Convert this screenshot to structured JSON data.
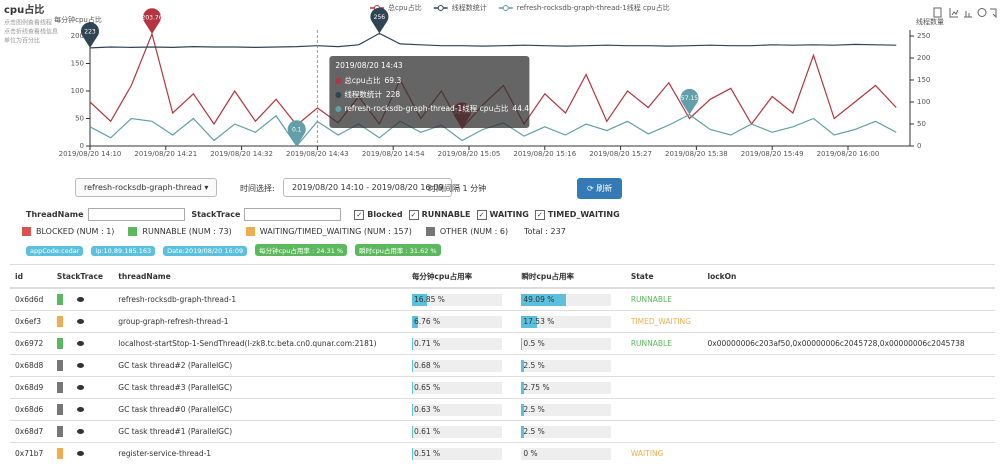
{
  "header": {
    "title": "cpu占比",
    "notes": [
      "点击图例查看线程",
      "点击折线查看栈信息",
      "单位为百分比"
    ]
  },
  "chart_data": {
    "type": "line",
    "legend": "top",
    "y_label": "每分钟cpu占比",
    "y2_label": "线程数量",
    "x": [
      "2019/08/20 14:10",
      "2019/08/20 14:13",
      "2019/08/20 14:16",
      "2019/08/20 14:19",
      "2019/08/20 14:22",
      "2019/08/20 14:25",
      "2019/08/20 14:28",
      "2019/08/20 14:31",
      "2019/08/20 14:34",
      "2019/08/20 14:37",
      "2019/08/20 14:40",
      "2019/08/20 14:43",
      "2019/08/20 14:46",
      "2019/08/20 14:49",
      "2019/08/20 14:52",
      "2019/08/20 14:55",
      "2019/08/20 14:58",
      "2019/08/20 15:01",
      "2019/08/20 15:04",
      "2019/08/20 15:07",
      "2019/08/20 15:10",
      "2019/08/20 15:13",
      "2019/08/20 15:16",
      "2019/08/20 15:19",
      "2019/08/20 15:22",
      "2019/08/20 15:25",
      "2019/08/20 15:28",
      "2019/08/20 15:31",
      "2019/08/20 15:34",
      "2019/08/20 15:37",
      "2019/08/20 15:40",
      "2019/08/20 15:43",
      "2019/08/20 15:46",
      "2019/08/20 15:49",
      "2019/08/20 15:52",
      "2019/08/20 15:55",
      "2019/08/20 15:58",
      "2019/08/20 16:01",
      "2019/08/20 16:04",
      "2019/08/20 16:07"
    ],
    "xlim": [
      "2019/08/20 14:10",
      "2019/08/20 16:09"
    ],
    "xticks": [
      "2019/08/20 14:10",
      "2019/08/20 14:21",
      "2019/08/20 14:32",
      "2019/08/20 14:43",
      "2019/08/20 14:54",
      "2019/08/20 15:05",
      "2019/08/20 15:16",
      "2019/08/20 15:27",
      "2019/08/20 15:38",
      "2019/08/20 15:49",
      "2019/08/20 16:00"
    ],
    "ylim": [
      0,
      200
    ],
    "yticks": [
      0,
      50,
      100,
      150,
      200
    ],
    "y2lim": [
      0,
      250
    ],
    "y2ticks": [
      0,
      50,
      100,
      150,
      200,
      250
    ],
    "grid": false,
    "mark_points": [
      "max",
      "min"
    ],
    "series": [
      {
        "name": "总cpu占比",
        "color": "#b5343f",
        "values": [
          80,
          45,
          110,
          203.76,
          60,
          95,
          40,
          100,
          45,
          85,
          38,
          69.3,
          42,
          90,
          40,
          120,
          50,
          100,
          32.36,
          75,
          110,
          40,
          95,
          60,
          130,
          45,
          100,
          70,
          115,
          50,
          85,
          105,
          40,
          90,
          60,
          165,
          50,
          80,
          110,
          70
        ]
      },
      {
        "name": "线程数统计",
        "color": "#2f4554",
        "axis": "y2",
        "values": [
          223,
          225,
          224,
          225,
          224,
          226,
          225,
          225,
          224,
          225,
          226,
          228,
          226,
          230,
          256,
          232,
          230,
          228,
          228,
          227,
          228,
          229,
          228,
          227,
          228,
          229,
          228,
          228,
          227,
          228,
          229,
          228,
          228,
          230,
          229,
          230,
          229,
          231,
          230,
          229
        ]
      },
      {
        "name": "refresh-rocksdb-graph-thread-1线程 cpu占比",
        "color": "#61a0a8",
        "values": [
          35,
          15,
          50,
          45,
          20,
          50,
          10,
          40,
          25,
          55,
          0.1,
          44.49,
          20,
          40,
          15,
          45,
          25,
          38,
          10,
          30,
          42,
          18,
          35,
          20,
          40,
          28,
          45,
          22,
          38,
          57.15,
          30,
          20,
          40,
          25,
          35,
          50,
          20,
          30,
          45,
          25
        ]
      }
    ]
  },
  "controls": {
    "thread_select": "refresh-rocksdb-graph-thread",
    "time_label": "时间选择:",
    "time_range": "2019/08/20 14:10 - 2019/08/20 16:09",
    "interval": "时间间隔 1 分钟",
    "refresh": "刷新"
  },
  "filters": {
    "thread_name": "ThreadName",
    "stack_trace": "StackTrace",
    "checks": [
      "Blocked",
      "RUNNABLE",
      "WAITING",
      "TIMED_WAITING"
    ]
  },
  "states": [
    {
      "label": "BLOCKED (NUM : 1)",
      "color": "#d9534f"
    },
    {
      "label": "RUNNABLE (NUM : 73)",
      "color": "#5cb85c"
    },
    {
      "label": "WAITING/TIMED_WAITING (NUM : 157)",
      "color": "#f0ad4e"
    },
    {
      "label": "OTHER (NUM : 6)",
      "color": "#777777"
    }
  ],
  "total": "Total : 237",
  "badges": [
    {
      "text": "appCode:cedar",
      "color": "#5bc0de"
    },
    {
      "text": "ip:10.89.185.163",
      "color": "#5bc0de"
    },
    {
      "text": "Date:2019/08/20 16:09",
      "color": "#5bc0de"
    },
    {
      "text": "每分钟cpu占用率 : 24.31 %",
      "color": "#5cb85c"
    },
    {
      "text": "瞬时cpu占用率 : 31.62 %",
      "color": "#5cb85c"
    }
  ],
  "table": {
    "columns": [
      "id",
      "StackTrace",
      "threadName",
      "每分钟cpu占用率",
      "瞬时cpu占用率",
      "State",
      "lockOn"
    ],
    "rows": [
      {
        "id": "0x6d6d",
        "stack_color": "#5cb85c",
        "thread": "refresh-rocksdb-graph-thread-1",
        "minute": {
          "value": 16.85,
          "label": "16.85 %"
        },
        "instant": {
          "value": 49.09,
          "label": "49.09 %"
        },
        "state": "RUNNABLE",
        "state_color": "#5cb85c"
      },
      {
        "id": "0x6ef3",
        "stack_color": "#f0ad4e",
        "thread": "group-graph-refresh-thread-1",
        "minute": {
          "value": 6.76,
          "label": "6.76 %"
        },
        "instant": {
          "value": 17.53,
          "label": "17.53 %"
        },
        "state": "TIMED_WAITING",
        "state_color": "#f0ad4e"
      },
      {
        "id": "0x6972",
        "stack_color": "#5cb85c",
        "thread": "localhost-startStop-1-SendThread(l-zk8.tc.beta.cn0.qunar.com:2181)",
        "minute": {
          "value": 0.71,
          "label": "0.71 %"
        },
        "instant": {
          "value": 0.5,
          "label": "0.5 %"
        },
        "state": "RUNNABLE",
        "state_color": "#5cb85c",
        "lock_on": "0x00000006c203af50,0x00000006c2045728,0x00000006c2045738"
      },
      {
        "id": "0x68d8",
        "stack_color": "#777777",
        "thread": "GC task thread#2 (ParallelGC)",
        "minute": {
          "value": 0.68,
          "label": "0.68 %"
        },
        "instant": {
          "value": 2.5,
          "label": "2.5 %"
        }
      },
      {
        "id": "0x68d9",
        "stack_color": "#777777",
        "thread": "GC task thread#3 (ParallelGC)",
        "minute": {
          "value": 0.65,
          "label": "0.65 %"
        },
        "instant": {
          "value": 2.75,
          "label": "2.75 %"
        }
      },
      {
        "id": "0x68d6",
        "stack_color": "#777777",
        "thread": "GC task thread#0 (ParallelGC)",
        "minute": {
          "value": 0.63,
          "label": "0.63 %"
        },
        "instant": {
          "value": 2.5,
          "label": "2.5 %"
        }
      },
      {
        "id": "0x68d7",
        "stack_color": "#777777",
        "thread": "GC task thread#1 (ParallelGC)",
        "minute": {
          "value": 0.61,
          "label": "0.61 %"
        },
        "instant": {
          "value": 2.5,
          "label": "2.5 %"
        }
      },
      {
        "id": "0x71b7",
        "stack_color": "#f0ad4e",
        "thread": "register-service-thread-1",
        "minute": {
          "value": 0.51,
          "label": "0.51 %"
        },
        "instant": {
          "value": 0,
          "label": "0 %"
        },
        "state": "WAITING",
        "state_color": "#f0ad4e"
      }
    ]
  }
}
